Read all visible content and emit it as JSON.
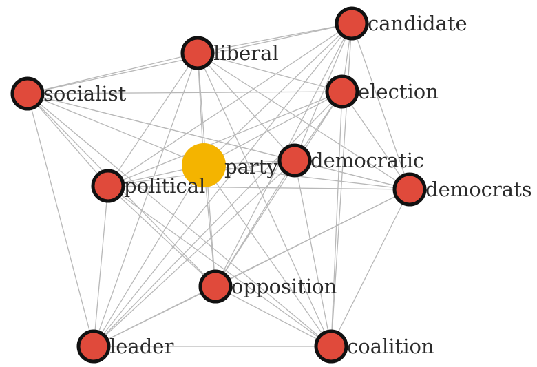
{
  "colors": {
    "node_fill": "#e04a3b",
    "node_stroke": "#111111",
    "center_fill": "#f4b400",
    "edge": "#b8b8b8",
    "text": "#2b2b2b"
  },
  "nodes": [
    {
      "id": "party",
      "label": "party",
      "role": "center"
    },
    {
      "id": "candidate",
      "label": "candidate"
    },
    {
      "id": "liberal",
      "label": "liberal"
    },
    {
      "id": "election",
      "label": "election"
    },
    {
      "id": "socialist",
      "label": "socialist"
    },
    {
      "id": "democratic",
      "label": "democratic"
    },
    {
      "id": "political",
      "label": "political"
    },
    {
      "id": "democrats",
      "label": "democrats"
    },
    {
      "id": "opposition",
      "label": "opposition"
    },
    {
      "id": "leader",
      "label": "leader"
    },
    {
      "id": "coalition",
      "label": "coalition"
    }
  ],
  "edges": [
    [
      "socialist",
      "liberal"
    ],
    [
      "socialist",
      "candidate"
    ],
    [
      "socialist",
      "election"
    ],
    [
      "socialist",
      "democratic"
    ],
    [
      "socialist",
      "democrats"
    ],
    [
      "socialist",
      "political"
    ],
    [
      "socialist",
      "opposition"
    ],
    [
      "socialist",
      "leader"
    ],
    [
      "socialist",
      "coalition"
    ],
    [
      "socialist",
      "party"
    ],
    [
      "liberal",
      "candidate"
    ],
    [
      "liberal",
      "election"
    ],
    [
      "liberal",
      "democratic"
    ],
    [
      "liberal",
      "democrats"
    ],
    [
      "liberal",
      "political"
    ],
    [
      "liberal",
      "opposition"
    ],
    [
      "liberal",
      "leader"
    ],
    [
      "liberal",
      "coalition"
    ],
    [
      "liberal",
      "party"
    ],
    [
      "candidate",
      "election"
    ],
    [
      "candidate",
      "democratic"
    ],
    [
      "candidate",
      "democrats"
    ],
    [
      "candidate",
      "political"
    ],
    [
      "candidate",
      "opposition"
    ],
    [
      "candidate",
      "leader"
    ],
    [
      "candidate",
      "coalition"
    ],
    [
      "candidate",
      "party"
    ],
    [
      "election",
      "democratic"
    ],
    [
      "election",
      "democrats"
    ],
    [
      "election",
      "political"
    ],
    [
      "election",
      "opposition"
    ],
    [
      "election",
      "leader"
    ],
    [
      "election",
      "coalition"
    ],
    [
      "election",
      "party"
    ],
    [
      "democratic",
      "democrats"
    ],
    [
      "democratic",
      "political"
    ],
    [
      "democratic",
      "opposition"
    ],
    [
      "democratic",
      "leader"
    ],
    [
      "democratic",
      "coalition"
    ],
    [
      "democratic",
      "party"
    ],
    [
      "democrats",
      "political"
    ],
    [
      "democrats",
      "opposition"
    ],
    [
      "democrats",
      "leader"
    ],
    [
      "democrats",
      "coalition"
    ],
    [
      "democrats",
      "party"
    ],
    [
      "political",
      "opposition"
    ],
    [
      "political",
      "leader"
    ],
    [
      "political",
      "coalition"
    ],
    [
      "political",
      "party"
    ],
    [
      "opposition",
      "leader"
    ],
    [
      "opposition",
      "coalition"
    ],
    [
      "opposition",
      "party"
    ],
    [
      "leader",
      "coalition"
    ],
    [
      "leader",
      "party"
    ],
    [
      "coalition",
      "party"
    ]
  ]
}
